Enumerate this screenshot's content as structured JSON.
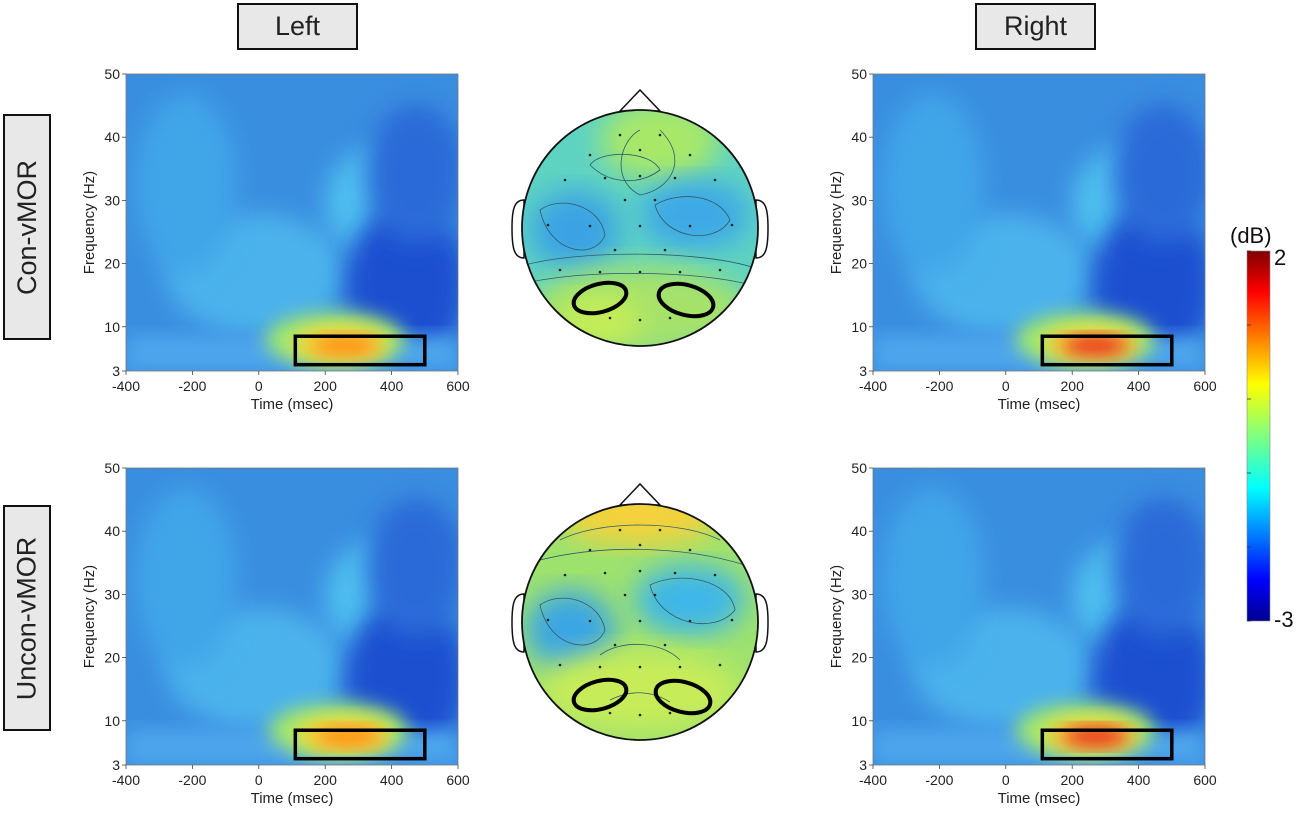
{
  "column_labels": {
    "left": "Left",
    "right": "Right"
  },
  "row_labels": {
    "top": "Con-vMOR",
    "bottom": "Uncon-vMOR"
  },
  "colorbar": {
    "unit": "(dB)",
    "max_label": "2",
    "min_label": "-3",
    "range": [
      -3,
      2
    ]
  },
  "chart_data": [
    {
      "type": "heatmap",
      "id": "con-left",
      "xlabel": "Time (msec)",
      "ylabel": "Frequency (Hz)",
      "xlim": [
        -400,
        600
      ],
      "ylim": [
        3,
        50
      ],
      "xticks": [
        "-400",
        "-200",
        "0",
        "200",
        "400",
        "600"
      ],
      "yticks": [
        "3",
        "10",
        "20",
        "30",
        "40",
        "50"
      ],
      "roi": {
        "time": [
          110,
          500
        ],
        "freq": [
          4,
          8.5
        ]
      },
      "peak": {
        "time": 260,
        "freq": 7,
        "value": 1.2
      }
    },
    {
      "type": "heatmap",
      "id": "con-right",
      "xlabel": "Time (msec)",
      "ylabel": "Frequency (Hz)",
      "xlim": [
        -400,
        600
      ],
      "ylim": [
        3,
        50
      ],
      "xticks": [
        "-400",
        "-200",
        "0",
        "200",
        "400",
        "600"
      ],
      "yticks": [
        "3",
        "10",
        "20",
        "30",
        "40",
        "50"
      ],
      "roi": {
        "time": [
          110,
          500
        ],
        "freq": [
          4,
          8.5
        ]
      },
      "peak": {
        "time": 270,
        "freq": 7,
        "value": 1.6
      }
    },
    {
      "type": "heatmap",
      "id": "uncon-left",
      "xlabel": "Time (msec)",
      "ylabel": "Frequency (Hz)",
      "xlim": [
        -400,
        600
      ],
      "ylim": [
        3,
        50
      ],
      "xticks": [
        "-400",
        "-200",
        "0",
        "200",
        "400",
        "600"
      ],
      "yticks": [
        "3",
        "10",
        "20",
        "30",
        "40",
        "50"
      ],
      "roi": {
        "time": [
          110,
          500
        ],
        "freq": [
          4,
          8.5
        ]
      },
      "peak": {
        "time": 270,
        "freq": 7.5,
        "value": 1.3
      }
    },
    {
      "type": "heatmap",
      "id": "uncon-right",
      "xlabel": "Time (msec)",
      "ylabel": "Frequency (Hz)",
      "xlim": [
        -400,
        600
      ],
      "ylim": [
        3,
        50
      ],
      "xticks": [
        "-400",
        "-200",
        "0",
        "200",
        "400",
        "600"
      ],
      "yticks": [
        "3",
        "10",
        "20",
        "30",
        "40",
        "50"
      ],
      "roi": {
        "time": [
          110,
          500
        ],
        "freq": [
          4,
          8.5
        ]
      },
      "peak": {
        "time": 270,
        "freq": 7.5,
        "value": 1.8
      }
    }
  ]
}
